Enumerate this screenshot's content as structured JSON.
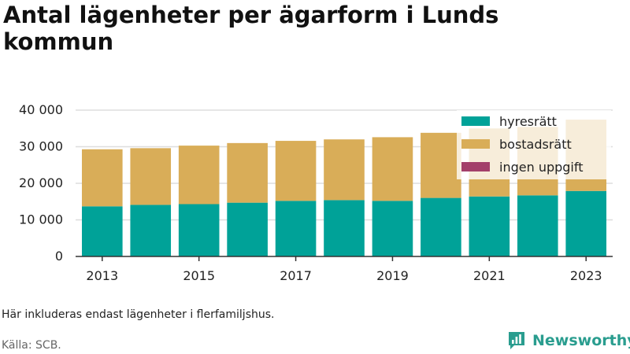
{
  "title": "Antal lägenheter per ägarform i Lunds kommun",
  "note": "Här inkluderas endast lägenheter i flerfamiljshus.",
  "source": "Källa: SCB.",
  "brand": "Newsworthy",
  "colors": {
    "hyresratt": "#00a298",
    "bostadsratt": "#d9ad58",
    "ingen_uppgift": "#a3406a"
  },
  "chart_data": {
    "type": "bar",
    "stacked": true,
    "x": [
      2013,
      2014,
      2015,
      2016,
      2017,
      2018,
      2019,
      2020,
      2021,
      2022,
      2023
    ],
    "x_tick_labels": [
      "2013",
      "2015",
      "2017",
      "2019",
      "2021",
      "2023"
    ],
    "y_ticks": [
      0,
      10000,
      20000,
      30000,
      40000
    ],
    "y_tick_labels": [
      "0",
      "10 000",
      "20 000",
      "30 000",
      "40 000"
    ],
    "ylim": [
      0,
      40000
    ],
    "grid": true,
    "legend_position": "top-right",
    "series": [
      {
        "name": "hyresrätt",
        "color": "#00a298",
        "values": [
          13700,
          14100,
          14300,
          14700,
          15200,
          15400,
          15200,
          16000,
          16400,
          16700,
          17900
        ]
      },
      {
        "name": "bostadsrätt",
        "color": "#d9ad58",
        "values": [
          15600,
          15500,
          16000,
          16300,
          16400,
          16600,
          17400,
          17800,
          18600,
          18700,
          19500
        ]
      },
      {
        "name": "ingen uppgift",
        "color": "#a3406a",
        "values": [
          0,
          0,
          0,
          0,
          0,
          0,
          0,
          0,
          0,
          0,
          0
        ]
      }
    ]
  }
}
